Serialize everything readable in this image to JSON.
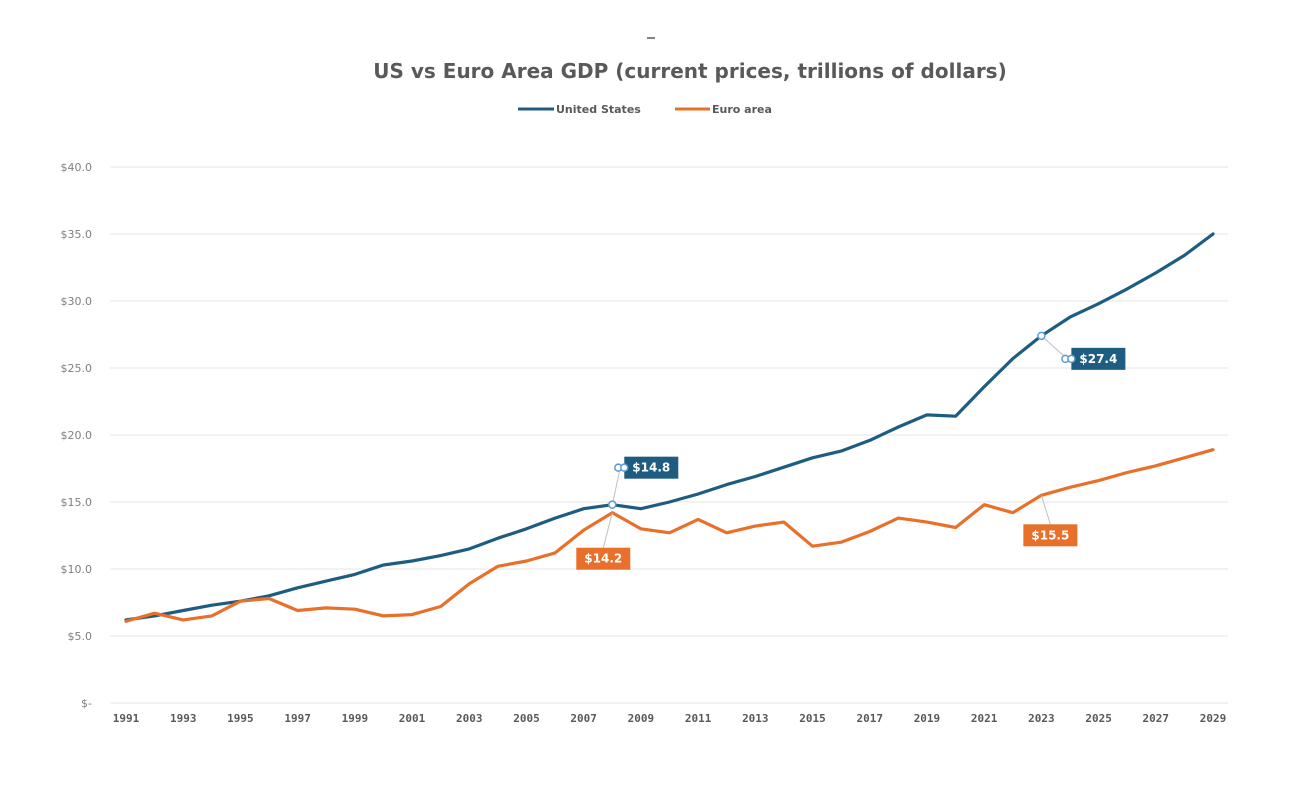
{
  "chart_data": {
    "type": "line",
    "title": "US vs Euro Area GDP (current prices, trillions of dollars)",
    "xlabel": "",
    "ylabel": "",
    "ylim": [
      0,
      40
    ],
    "y_ticks": [
      0,
      5,
      10,
      15,
      20,
      25,
      30,
      35,
      40
    ],
    "y_tick_labels": [
      "$-",
      "$5.0",
      "$10.0",
      "$15.0",
      "$20.0",
      "$25.0",
      "$30.0",
      "$35.0",
      "$40.0"
    ],
    "x": [
      1991,
      1992,
      1993,
      1994,
      1995,
      1996,
      1997,
      1998,
      1999,
      2000,
      2001,
      2002,
      2003,
      2004,
      2005,
      2006,
      2007,
      2008,
      2009,
      2010,
      2011,
      2012,
      2013,
      2014,
      2015,
      2016,
      2017,
      2018,
      2019,
      2020,
      2021,
      2022,
      2023,
      2024,
      2025,
      2026,
      2027,
      2028,
      2029
    ],
    "x_tick_labels": [
      "1991",
      "1993",
      "1995",
      "1997",
      "1999",
      "2001",
      "2003",
      "2005",
      "2007",
      "2009",
      "2011",
      "2013",
      "2015",
      "2017",
      "2019",
      "2021",
      "2023",
      "2025",
      "2027",
      "2029"
    ],
    "grid": true,
    "legend_position": "top-center",
    "series": [
      {
        "name": "United States",
        "color": "#1f5c82",
        "values": [
          6.2,
          6.5,
          6.9,
          7.3,
          7.6,
          8.0,
          8.6,
          9.1,
          9.6,
          10.3,
          10.6,
          11.0,
          11.5,
          12.3,
          13.0,
          13.8,
          14.5,
          14.8,
          14.5,
          15.0,
          15.6,
          16.3,
          16.9,
          17.6,
          18.3,
          18.8,
          19.6,
          20.6,
          21.5,
          21.4,
          23.6,
          25.7,
          27.4,
          28.8,
          29.8,
          30.9,
          32.1,
          33.4,
          35.0
        ]
      },
      {
        "name": "Euro area",
        "color": "#e8702a",
        "values": [
          6.1,
          6.7,
          6.2,
          6.5,
          7.6,
          7.8,
          6.9,
          7.1,
          7.0,
          6.5,
          6.6,
          7.2,
          8.9,
          10.2,
          10.6,
          11.2,
          12.9,
          14.2,
          13.0,
          12.7,
          13.7,
          12.7,
          13.2,
          13.5,
          11.7,
          12.0,
          12.8,
          13.8,
          13.5,
          13.1,
          14.8,
          14.2,
          15.5,
          16.1,
          16.6,
          17.2,
          17.7,
          18.3,
          18.9
        ]
      }
    ],
    "annotations": [
      {
        "series": "United States",
        "year": 2008,
        "label": "$14.8"
      },
      {
        "series": "Euro area",
        "year": 2008,
        "label": "$14.2"
      },
      {
        "series": "United States",
        "year": 2023,
        "label": "$27.4"
      },
      {
        "series": "Euro area",
        "year": 2023,
        "label": "$15.5"
      }
    ]
  }
}
